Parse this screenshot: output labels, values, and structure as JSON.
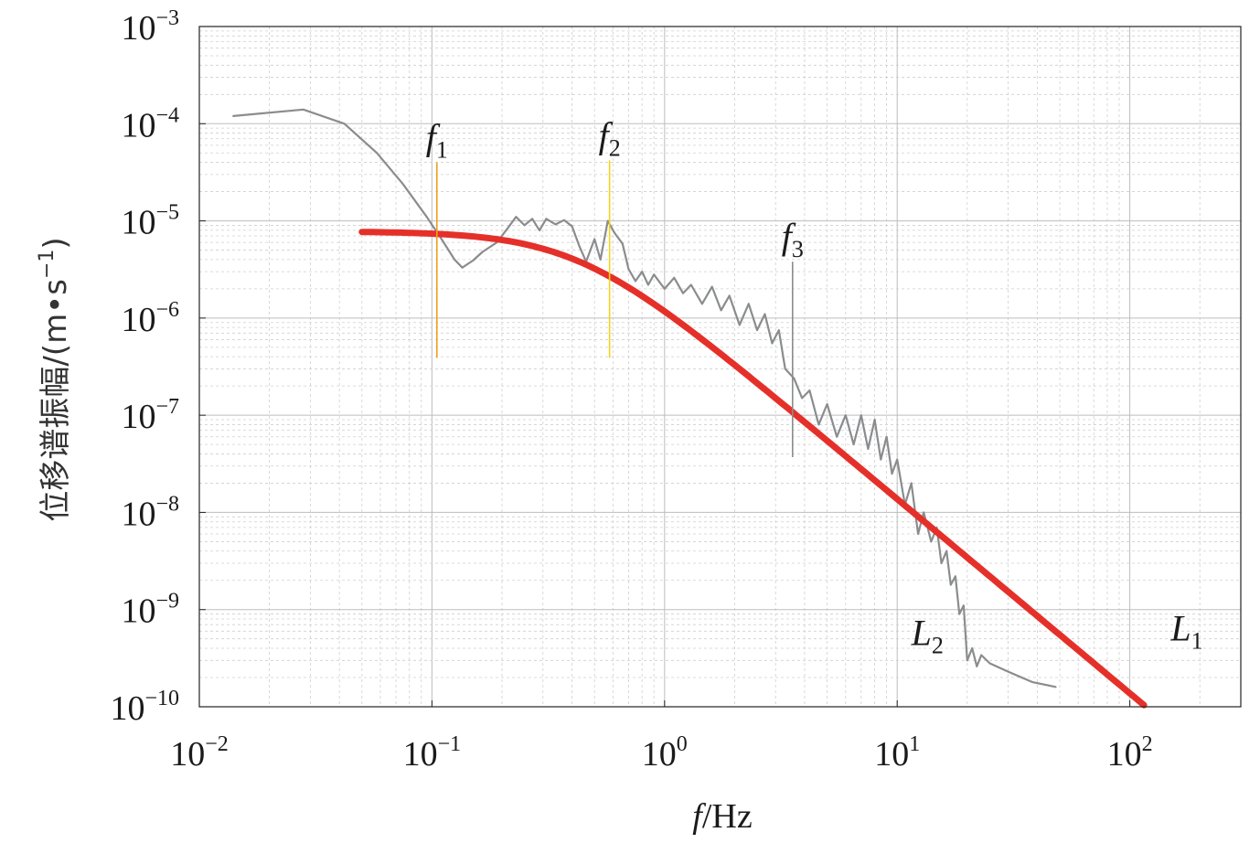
{
  "chart_data": {
    "type": "line",
    "title": "",
    "xlabel": {
      "italic": "f",
      "rest": "/Hz"
    },
    "ylabel": {
      "main": "位移谱振幅/(m•s",
      "sup": "−1",
      "close": ")"
    },
    "x_scale": "log",
    "y_scale": "log",
    "xlim": [
      0.01,
      300
    ],
    "ylim": [
      1e-10,
      0.001
    ],
    "x_ticks": [
      {
        "base": "10",
        "exp": "−2",
        "value": 0.01
      },
      {
        "base": "10",
        "exp": "−1",
        "value": 0.1
      },
      {
        "base": "10",
        "exp": "0",
        "value": 1
      },
      {
        "base": "10",
        "exp": "1",
        "value": 10
      },
      {
        "base": "10",
        "exp": "2",
        "value": 100
      }
    ],
    "y_ticks": [
      {
        "base": "10",
        "exp": "−3",
        "value": 0.001
      },
      {
        "base": "10",
        "exp": "−4",
        "value": 0.0001
      },
      {
        "base": "10",
        "exp": "−5",
        "value": 1e-05
      },
      {
        "base": "10",
        "exp": "−6",
        "value": 1e-06
      },
      {
        "base": "10",
        "exp": "−7",
        "value": 1e-07
      },
      {
        "base": "10",
        "exp": "−8",
        "value": 1e-08
      },
      {
        "base": "10",
        "exp": "−9",
        "value": 1e-09
      },
      {
        "base": "10",
        "exp": "−10",
        "value": 1e-10
      }
    ],
    "grid": true,
    "series": [
      {
        "label_main": "L",
        "label_sub": "2",
        "label_at": [
          11.5,
          4.3e-10
        ],
        "color": "#8a8c8e",
        "points": [
          [
            0.014,
            0.00012
          ],
          [
            0.028,
            0.00014
          ],
          [
            0.042,
            0.0001
          ],
          [
            0.058,
            5e-05
          ],
          [
            0.075,
            2.4e-05
          ],
          [
            0.095,
            1.1e-05
          ],
          [
            0.11,
            6.5e-06
          ],
          [
            0.125,
            4e-06
          ],
          [
            0.135,
            3.3e-06
          ],
          [
            0.15,
            3.9e-06
          ],
          [
            0.165,
            4.8e-06
          ],
          [
            0.19,
            6e-06
          ],
          [
            0.21,
            8.2e-06
          ],
          [
            0.23,
            1.1e-05
          ],
          [
            0.25,
            9e-06
          ],
          [
            0.27,
            1.05e-05
          ],
          [
            0.29,
            8e-06
          ],
          [
            0.31,
            1.05e-05
          ],
          [
            0.34,
            9.2e-06
          ],
          [
            0.37,
            1.02e-05
          ],
          [
            0.4,
            8.8e-06
          ],
          [
            0.43,
            5.5e-06
          ],
          [
            0.46,
            3.8e-06
          ],
          [
            0.5,
            6.5e-06
          ],
          [
            0.53,
            4e-06
          ],
          [
            0.57,
            1e-05
          ],
          [
            0.61,
            7.5e-06
          ],
          [
            0.66,
            5.8e-06
          ],
          [
            0.7,
            3.2e-06
          ],
          [
            0.75,
            2.4e-06
          ],
          [
            0.8,
            3e-06
          ],
          [
            0.85,
            2.2e-06
          ],
          [
            0.9,
            2.8e-06
          ],
          [
            1.0,
            2e-06
          ],
          [
            1.1,
            2.6e-06
          ],
          [
            1.2,
            1.8e-06
          ],
          [
            1.3,
            2.2e-06
          ],
          [
            1.45,
            1.4e-06
          ],
          [
            1.6,
            2.1e-06
          ],
          [
            1.75,
            1.2e-06
          ],
          [
            1.9,
            1.7e-06
          ],
          [
            2.1,
            8.5e-07
          ],
          [
            2.3,
            1.4e-06
          ],
          [
            2.5,
            7.5e-07
          ],
          [
            2.7,
            1.1e-06
          ],
          [
            2.9,
            5.5e-07
          ],
          [
            3.1,
            7.5e-07
          ],
          [
            3.3,
            3e-07
          ],
          [
            3.6,
            2.4e-07
          ],
          [
            3.9,
            1.5e-07
          ],
          [
            4.2,
            1.8e-07
          ],
          [
            4.6,
            8e-08
          ],
          [
            5.0,
            1.3e-07
          ],
          [
            5.5,
            6e-08
          ],
          [
            6.0,
            1e-07
          ],
          [
            6.5,
            5e-08
          ],
          [
            7.0,
            1e-07
          ],
          [
            7.5,
            4.5e-08
          ],
          [
            8.0,
            9e-08
          ],
          [
            8.5,
            3.5e-08
          ],
          [
            9.0,
            6e-08
          ],
          [
            9.5,
            2.5e-08
          ],
          [
            10.0,
            3.5e-08
          ],
          [
            10.8,
            1.2e-08
          ],
          [
            11.5,
            2e-08
          ],
          [
            12.3,
            6e-09
          ],
          [
            13.0,
            1e-08
          ],
          [
            14.0,
            5e-09
          ],
          [
            14.8,
            7e-09
          ],
          [
            15.5,
            3e-09
          ],
          [
            16.3,
            4e-09
          ],
          [
            17.0,
            1.8e-09
          ],
          [
            17.8,
            2.2e-09
          ],
          [
            18.5,
            9e-10
          ],
          [
            19.3,
            1.1e-09
          ],
          [
            20.0,
            3e-10
          ],
          [
            21.0,
            4e-10
          ],
          [
            22.0,
            2.6e-10
          ],
          [
            23.0,
            3.4e-10
          ],
          [
            25.0,
            2.8e-10
          ],
          [
            30.0,
            2.3e-10
          ],
          [
            38.0,
            1.8e-10
          ],
          [
            48.0,
            1.6e-10
          ]
        ]
      },
      {
        "label_main": "L",
        "label_sub": "1",
        "label_at": [
          150,
          4.8e-10
        ],
        "color": "#e5302a",
        "model": {
          "omega0": 7.8e-06,
          "fc": 0.42
        },
        "x_range": [
          0.05,
          115
        ]
      }
    ],
    "markers": [
      {
        "label_main": "f",
        "label_sub": "1",
        "x": 0.105,
        "y_bottom": 3.9e-07,
        "y_top": 4e-05,
        "color": "#f0a020"
      },
      {
        "label_main": "f",
        "label_sub": "2",
        "x": 0.58,
        "y_bottom": 3.9e-07,
        "y_top": 4.2e-05,
        "color": "#f2d21e"
      },
      {
        "label_main": "f",
        "label_sub": "3",
        "x": 3.55,
        "y_bottom": 3.7e-08,
        "y_top": 3.8e-06,
        "color": "#8a8c8e"
      }
    ]
  }
}
